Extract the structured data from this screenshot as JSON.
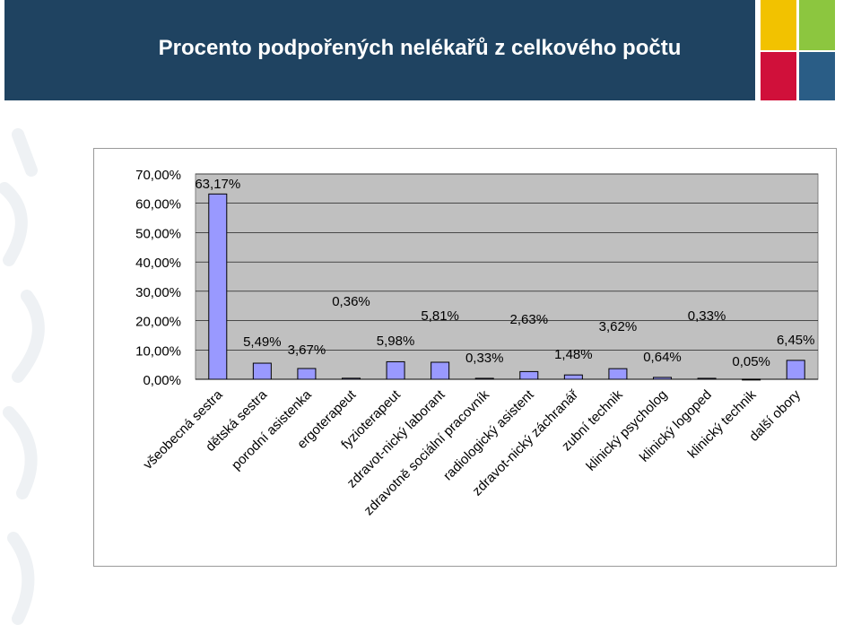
{
  "title": "Procento podpořených nelékařů z celkového počtu",
  "colors": {
    "banner": "#1f4361",
    "bar_fill": "#9999ff",
    "bar_stroke": "#000000",
    "plot_bg": "#c0c0c0",
    "accent_yellow": "#f2c200",
    "accent_green": "#8cc63f",
    "accent_red": "#d0103a",
    "accent_blue": "#2a5d86"
  },
  "chart_data": {
    "type": "bar",
    "categories": [
      "všeobecná sestra",
      "dětská sestra",
      "porodní asistenka",
      "ergoterapeut",
      "fyzioterapeut",
      "zdravot-nický laborant",
      "zdravotně sociální pracovník",
      "radiologický asistent",
      "zdravot-nický záchranář",
      "zubní technik",
      "klinický psycholog",
      "klinický logoped",
      "klinický technik",
      "další obory"
    ],
    "values": [
      63.17,
      5.49,
      3.67,
      0.36,
      5.98,
      5.81,
      0.33,
      2.63,
      1.48,
      3.62,
      0.64,
      0.33,
      0.05,
      6.45
    ],
    "data_labels": [
      "63,17%",
      "5,49%",
      "3,67%",
      "0,36%",
      "5,98%",
      "5,81%",
      "0,33%",
      "2,63%",
      "1,48%",
      "3,62%",
      "0,64%",
      "0,33%",
      "0,05%",
      "6,45%"
    ],
    "ylim": [
      0,
      70
    ],
    "yticks": [
      0,
      10,
      20,
      30,
      40,
      50,
      60,
      70
    ],
    "ytick_labels": [
      "0,00%",
      "10,00%",
      "20,00%",
      "30,00%",
      "40,00%",
      "50,00%",
      "60,00%",
      "70,00%"
    ],
    "grid": true,
    "legend": false
  }
}
